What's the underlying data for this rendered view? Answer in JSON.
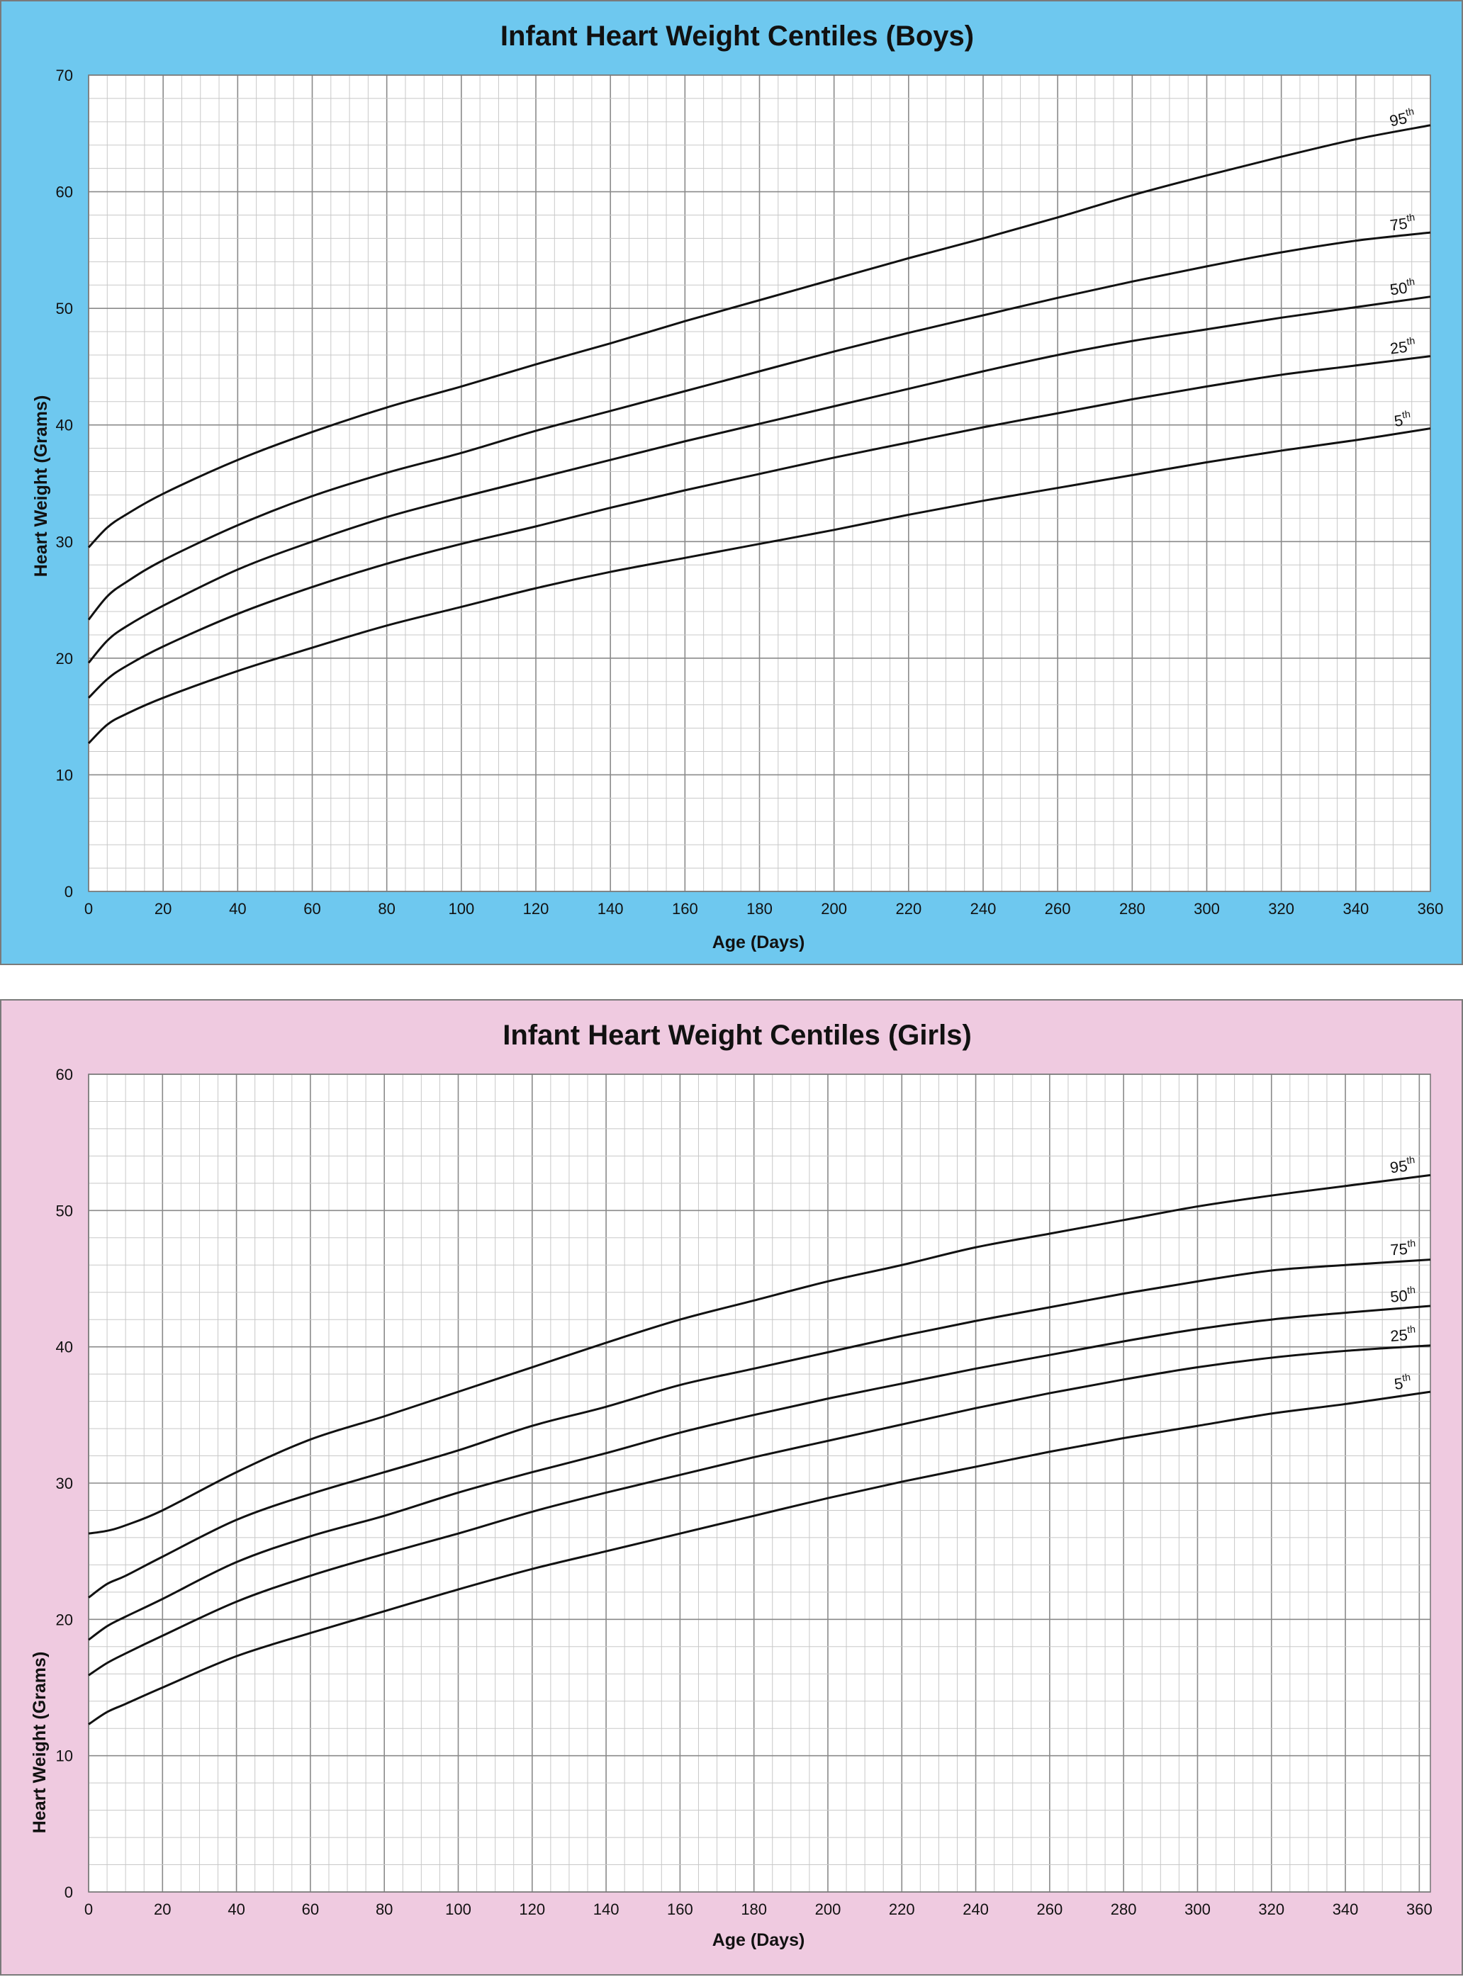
{
  "chart_data": [
    {
      "type": "line",
      "title": "Infant Heart Weight Centiles (Boys)",
      "xlabel": "Age (Days)",
      "ylabel": "Heart Weight (Grams)",
      "xlim": [
        0,
        360
      ],
      "ylim": [
        0,
        70
      ],
      "x_ticks": [
        "0",
        "20",
        "40",
        "60",
        "80",
        "100",
        "120",
        "140",
        "160",
        "180",
        "200",
        "220",
        "240",
        "260",
        "280",
        "300",
        "320",
        "340",
        "360"
      ],
      "y_ticks": [
        "0",
        "10",
        "20",
        "30",
        "40",
        "50",
        "60",
        "70"
      ],
      "x_major_step": 20,
      "x_minor_step": 5,
      "y_major_step": 10,
      "y_minor_step": 2,
      "grid": true,
      "background": "#6ec8ef",
      "x": [
        0,
        5,
        10,
        20,
        40,
        60,
        80,
        100,
        120,
        140,
        160,
        180,
        200,
        220,
        240,
        260,
        280,
        300,
        320,
        340,
        360
      ],
      "series": [
        {
          "name": "5",
          "suffix": "th",
          "values": [
            12.7,
            14.3,
            15.2,
            16.6,
            18.9,
            20.9,
            22.8,
            24.4,
            26.0,
            27.4,
            28.6,
            29.8,
            31.0,
            32.3,
            33.5,
            34.6,
            35.7,
            36.8,
            37.8,
            38.7,
            39.7
          ]
        },
        {
          "name": "25",
          "suffix": "th",
          "values": [
            16.6,
            18.2,
            19.3,
            21.0,
            23.8,
            26.1,
            28.1,
            29.8,
            31.3,
            32.9,
            34.4,
            35.8,
            37.2,
            38.5,
            39.8,
            41.0,
            42.2,
            43.3,
            44.3,
            45.1,
            45.9
          ]
        },
        {
          "name": "50",
          "suffix": "th",
          "values": [
            19.6,
            21.5,
            22.7,
            24.5,
            27.6,
            30.0,
            32.1,
            33.8,
            35.4,
            37.0,
            38.6,
            40.1,
            41.6,
            43.1,
            44.6,
            46.0,
            47.2,
            48.2,
            49.2,
            50.1,
            51.0
          ]
        },
        {
          "name": "75",
          "suffix": "th",
          "values": [
            23.3,
            25.3,
            26.5,
            28.4,
            31.4,
            33.9,
            35.9,
            37.6,
            39.5,
            41.2,
            42.9,
            44.6,
            46.3,
            47.9,
            49.4,
            50.9,
            52.3,
            53.6,
            54.8,
            55.8,
            56.5
          ]
        },
        {
          "name": "95",
          "suffix": "th",
          "values": [
            29.5,
            31.2,
            32.3,
            34.1,
            37.0,
            39.4,
            41.5,
            43.3,
            45.2,
            47.0,
            48.9,
            50.7,
            52.5,
            54.3,
            56.0,
            57.8,
            59.7,
            61.4,
            63.0,
            64.5,
            65.7
          ]
        }
      ],
      "centile_prefix": "",
      "line_color": "#111111"
    },
    {
      "type": "line",
      "title": "Infant Heart Weight Centiles (Girls)",
      "xlabel": "Age (Days)",
      "ylabel": "Heart Weight (Grams)",
      "xlim": [
        0,
        363
      ],
      "ylim": [
        0,
        60
      ],
      "x_ticks": [
        "0",
        "20",
        "40",
        "60",
        "80",
        "100",
        "120",
        "140",
        "160",
        "180",
        "200",
        "220",
        "240",
        "260",
        "280",
        "300",
        "320",
        "340",
        "360"
      ],
      "y_ticks": [
        "0",
        "10",
        "20",
        "30",
        "40",
        "50",
        "60"
      ],
      "x_major_step": 20,
      "x_minor_step": 5,
      "y_major_step": 10,
      "y_minor_step": 2,
      "grid": true,
      "background": "#efcae0",
      "x": [
        0,
        5,
        10,
        20,
        40,
        60,
        80,
        100,
        120,
        140,
        160,
        180,
        200,
        220,
        240,
        260,
        280,
        300,
        320,
        340,
        363
      ],
      "series": [
        {
          "name": "5",
          "suffix": "th",
          "values": [
            12.3,
            13.2,
            13.8,
            15.0,
            17.3,
            19.0,
            20.6,
            22.2,
            23.7,
            25.0,
            26.3,
            27.6,
            28.9,
            30.1,
            31.2,
            32.3,
            33.3,
            34.2,
            35.1,
            35.8,
            36.7
          ]
        },
        {
          "name": "25",
          "suffix": "th",
          "values": [
            15.9,
            16.8,
            17.5,
            18.8,
            21.3,
            23.2,
            24.8,
            26.3,
            27.9,
            29.3,
            30.6,
            31.9,
            33.1,
            34.3,
            35.5,
            36.6,
            37.6,
            38.5,
            39.2,
            39.7,
            40.1
          ]
        },
        {
          "name": "50",
          "suffix": "th",
          "values": [
            18.5,
            19.5,
            20.2,
            21.5,
            24.2,
            26.1,
            27.6,
            29.3,
            30.8,
            32.2,
            33.7,
            35.0,
            36.2,
            37.3,
            38.4,
            39.4,
            40.4,
            41.3,
            42.0,
            42.5,
            43.0
          ]
        },
        {
          "name": "75",
          "suffix": "th",
          "values": [
            21.6,
            22.6,
            23.2,
            24.6,
            27.3,
            29.2,
            30.8,
            32.4,
            34.2,
            35.6,
            37.2,
            38.4,
            39.6,
            40.8,
            41.9,
            42.9,
            43.9,
            44.8,
            45.6,
            46.0,
            46.4
          ]
        },
        {
          "name": "95",
          "suffix": "th",
          "values": [
            26.3,
            26.5,
            26.9,
            28.0,
            30.8,
            33.2,
            34.9,
            36.7,
            38.5,
            40.3,
            42.0,
            43.4,
            44.8,
            46.0,
            47.3,
            48.3,
            49.3,
            50.3,
            51.1,
            51.8,
            52.6
          ]
        }
      ],
      "line_color": "#111111"
    }
  ]
}
